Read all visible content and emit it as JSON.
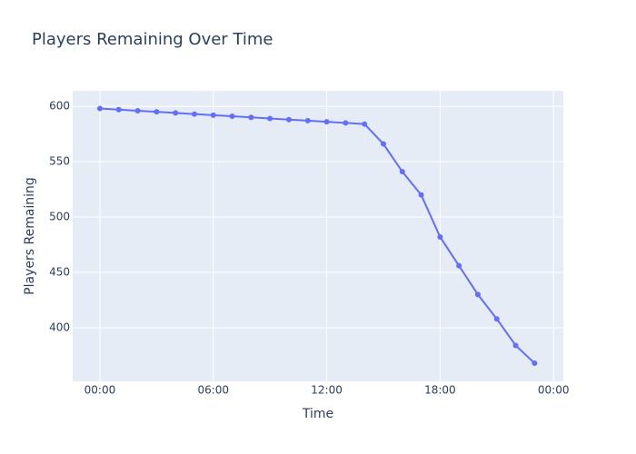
{
  "chart_data": {
    "type": "line",
    "title": "Players Remaining Over Time",
    "x_label": "Time",
    "y_label": "Players Remaining",
    "x": [
      0,
      1,
      2,
      3,
      4,
      5,
      6,
      7,
      8,
      9,
      10,
      11,
      12,
      13,
      14,
      15,
      16,
      17,
      18,
      19,
      20,
      21,
      22,
      23
    ],
    "series": [
      {
        "name": "Players Remaining",
        "color": "#636efa",
        "values": [
          598,
          597,
          596,
          595,
          594,
          593,
          592,
          591,
          590,
          589,
          588,
          587,
          586,
          585,
          584,
          566,
          541,
          520,
          482,
          456,
          430,
          408,
          384,
          368
        ]
      }
    ],
    "xlim": [
      -1.44,
      24.52
    ],
    "xticks": [
      {
        "value": 0,
        "label": "00:00"
      },
      {
        "value": 6,
        "label": "06:00"
      },
      {
        "value": 12,
        "label": "12:00"
      },
      {
        "value": 18,
        "label": "18:00"
      },
      {
        "value": 24,
        "label": "00:00"
      }
    ],
    "ylim": [
      351.6,
      614
    ],
    "yticks": [
      400,
      450,
      500,
      550,
      600
    ],
    "grid": true
  }
}
